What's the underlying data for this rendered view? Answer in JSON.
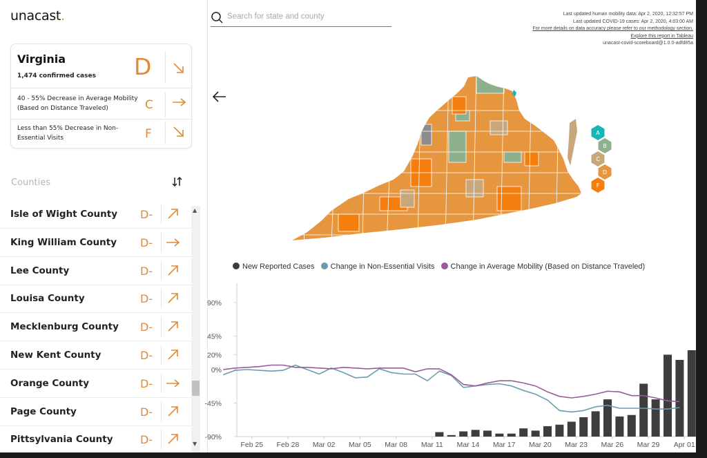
{
  "app": {
    "logo_text": "unacast",
    "logo_dot": "."
  },
  "search": {
    "placeholder": "Search for state and county"
  },
  "info": {
    "line1": "Last updated human mobility data: Apr 2, 2020, 12:32:57 PM",
    "line2": "Last updated COVID-19 cases: Apr 2, 2020, 4:03:00 AM",
    "line3": "For more details on data accuracy please refer to our methodology section.",
    "line4": "Explore this report in Tableau",
    "line5": "unacast-covid-scoreboard@1.0.0-adfd85a"
  },
  "state": {
    "name": "Virginia",
    "cases": "1,474 confirmed cases",
    "grade": "D",
    "trend": "down",
    "metrics": [
      {
        "label": "40 - 55% Decrease in Average Mobility (Based on Distance Traveled)",
        "grade": "C",
        "trend": "flat"
      },
      {
        "label": "Less than 55% Decrease in Non-Essential Visits",
        "grade": "F",
        "trend": "down"
      }
    ]
  },
  "counties": {
    "title": "Counties",
    "items": [
      {
        "name": "Isle of Wight County",
        "grade": "D-",
        "trend": "up"
      },
      {
        "name": "King William County",
        "grade": "D-",
        "trend": "flat"
      },
      {
        "name": "Lee County",
        "grade": "D-",
        "trend": "up"
      },
      {
        "name": "Louisa County",
        "grade": "D-",
        "trend": "up"
      },
      {
        "name": "Mecklenburg County",
        "grade": "D-",
        "trend": "up"
      },
      {
        "name": "New Kent County",
        "grade": "D-",
        "trend": "up"
      },
      {
        "name": "Orange County",
        "grade": "D-",
        "trend": "flat"
      },
      {
        "name": "Page County",
        "grade": "D-",
        "trend": "up"
      },
      {
        "name": "Pittsylvania County",
        "grade": "D-",
        "trend": "up"
      }
    ]
  },
  "grade_legend": {
    "grades": [
      "A",
      "B",
      "C",
      "D",
      "F"
    ],
    "colors": [
      "#19b5b0",
      "#8fb08c",
      "#c8a77a",
      "#e5963f",
      "#f57f0e"
    ]
  },
  "colors": {
    "accent": "#e08a35",
    "cases": "#3d3d3d",
    "visits": "#6a9cb0",
    "mobility": "#9a5a9a"
  },
  "chart_data": {
    "type": "bar+line",
    "legend": [
      "New Reported Cases",
      "Change in Non-Essential Visits",
      "Change in Average Mobility (Based on Distance Traveled)"
    ],
    "y_ticks": [
      "90%",
      "45%",
      "20%",
      "0%",
      "-45%",
      "-90%"
    ],
    "y_tick_values": [
      90,
      45,
      20,
      0,
      -45,
      -90
    ],
    "ylim": [
      -90,
      90
    ],
    "x_ticks": [
      "Feb 25",
      "Feb 28",
      "Mar 02",
      "Mar 05",
      "Mar 08",
      "Mar 11",
      "Mar 14",
      "Mar 17",
      "Mar 20",
      "Mar 23",
      "Mar 26",
      "Mar 29",
      "Apr 01"
    ],
    "x_tick_days": [
      0,
      3,
      6,
      9,
      12,
      15,
      18,
      21,
      24,
      27,
      30,
      33,
      36
    ],
    "bars": {
      "name": "New Reported Cases",
      "start_date": "Mar 10",
      "values_pct": [
        -84,
        -88,
        -83,
        -81,
        -82,
        -86,
        -86,
        -79,
        -82,
        -76,
        -74,
        -70,
        -64,
        -56,
        -40,
        -63,
        -61,
        -19,
        -40,
        20,
        13,
        26,
        10,
        80,
        90
      ]
    },
    "visits": {
      "name": "Change in Non-Essential Visits",
      "start_date": "Feb 23",
      "values": [
        -7,
        -1,
        0,
        -1,
        -2,
        -1,
        6,
        0,
        -6,
        2,
        -4,
        -11,
        -10,
        1,
        -4,
        -6,
        -6,
        -15,
        -2,
        -8,
        -24,
        -22,
        -20,
        -19,
        -22,
        -28,
        -33,
        -41,
        -55,
        -57,
        -55,
        -50,
        -48,
        -52,
        -52,
        -52,
        -53,
        -53,
        -51
      ]
    },
    "mobility": {
      "name": "Change in Average Mobility (Based on Distance Traveled)",
      "start_date": "Feb 23",
      "values": [
        0,
        2,
        3,
        4,
        6,
        6,
        3,
        3,
        2,
        1,
        3,
        2,
        1,
        2,
        2,
        2,
        -3,
        1,
        1,
        -7,
        -20,
        -22,
        -18,
        -15,
        -15,
        -18,
        -22,
        -30,
        -36,
        -38,
        -36,
        -33,
        -29,
        -30,
        -35,
        -35,
        -38,
        -42,
        -43
      ]
    }
  }
}
